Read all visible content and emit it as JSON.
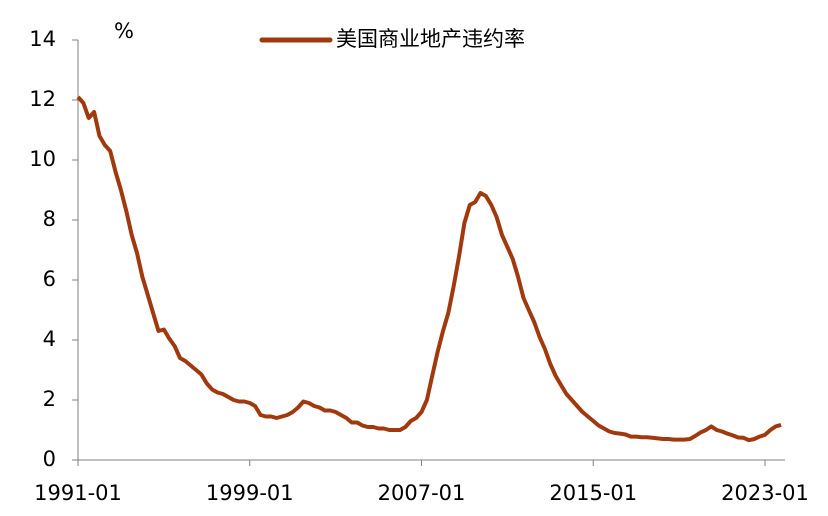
{
  "chart_data": {
    "type": "line",
    "unit": "%",
    "categories": [
      "1991-01",
      null,
      null,
      null,
      null,
      null,
      null,
      null,
      null,
      null,
      null,
      null,
      null,
      null,
      null,
      null,
      null,
      null,
      null,
      null,
      null,
      null,
      null,
      null,
      null,
      null,
      null,
      null,
      null,
      null,
      null,
      null,
      "1999-01",
      null,
      null,
      null,
      null,
      null,
      null,
      null,
      null,
      null,
      null,
      null,
      null,
      null,
      null,
      null,
      null,
      null,
      null,
      null,
      null,
      null,
      null,
      null,
      null,
      null,
      null,
      null,
      null,
      null,
      null,
      null,
      "2007-01",
      null,
      null,
      null,
      null,
      null,
      null,
      null,
      null,
      null,
      null,
      null,
      null,
      null,
      null,
      null,
      null,
      null,
      null,
      null,
      null,
      null,
      null,
      null,
      null,
      null,
      null,
      null,
      null,
      null,
      null,
      null,
      "2015-01",
      null,
      null,
      null,
      null,
      null,
      null,
      null,
      null,
      null,
      null,
      null,
      null,
      null,
      null,
      null,
      null,
      null,
      null,
      null,
      null,
      null,
      null,
      null,
      null,
      null,
      null,
      null,
      null,
      null,
      null,
      null,
      "2023-01",
      null,
      null,
      null
    ],
    "series": [
      {
        "name": "美国商业地产违约率",
        "color": "#a03a0e",
        "values": [
          12.1,
          11.9,
          11.4,
          11.6,
          10.8,
          10.5,
          10.3,
          9.6,
          9.0,
          8.3,
          7.5,
          6.9,
          6.1,
          5.5,
          4.9,
          4.3,
          4.35,
          4.05,
          3.8,
          3.4,
          3.3,
          3.15,
          3.0,
          2.85,
          2.55,
          2.35,
          2.25,
          2.2,
          2.1,
          2.0,
          1.95,
          1.95,
          1.9,
          1.8,
          1.5,
          1.45,
          1.45,
          1.4,
          1.45,
          1.5,
          1.6,
          1.75,
          1.95,
          1.9,
          1.8,
          1.75,
          1.65,
          1.65,
          1.6,
          1.5,
          1.4,
          1.25,
          1.25,
          1.15,
          1.1,
          1.1,
          1.05,
          1.05,
          1.0,
          1.0,
          1.0,
          1.1,
          1.3,
          1.4,
          1.6,
          2.0,
          2.8,
          3.6,
          4.3,
          4.9,
          5.8,
          6.8,
          7.9,
          8.5,
          8.6,
          8.9,
          8.8,
          8.5,
          8.1,
          7.5,
          7.1,
          6.7,
          6.1,
          5.4,
          5.0,
          4.6,
          4.1,
          3.7,
          3.2,
          2.8,
          2.5,
          2.2,
          2.0,
          1.8,
          1.6,
          1.45,
          1.3,
          1.15,
          1.05,
          0.95,
          0.9,
          0.88,
          0.85,
          0.78,
          0.78,
          0.76,
          0.76,
          0.74,
          0.72,
          0.7,
          0.7,
          0.68,
          0.68,
          0.68,
          0.7,
          0.8,
          0.92,
          1.0,
          1.12,
          1.0,
          0.95,
          0.88,
          0.82,
          0.75,
          0.74,
          0.66,
          0.7,
          0.78,
          0.84,
          1.0,
          1.12,
          1.17
        ]
      }
    ],
    "ylim": [
      0,
      14
    ],
    "yticks": [
      0,
      2,
      4,
      6,
      8,
      10,
      12,
      14
    ],
    "legend": "top"
  }
}
